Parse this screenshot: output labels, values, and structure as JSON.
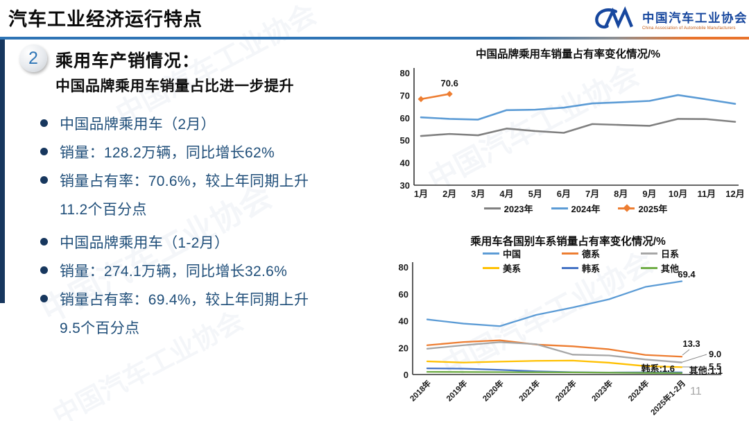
{
  "header": {
    "title": "汽车工业经济运行特点",
    "logo_cn": "中国汽车工业协会",
    "logo_en": "China Association of Automobile Manufacturers"
  },
  "watermark_text": "中国汽车工业协会",
  "section": {
    "number": "2",
    "heading": "乘用车产销情况：",
    "subheading": "中国品牌乘用车销量占比进一步提升"
  },
  "bullets": [
    {
      "text": "中国品牌乘用车（2月）",
      "dot": true
    },
    {
      "text": "销量：128.2万辆，同比增长62%",
      "dot": true
    },
    {
      "text": "销量占有率：70.6%，较上年同期上升",
      "dot": true
    },
    {
      "text": "11.2个百分点",
      "dot": false
    },
    {
      "text": "中国品牌乘用车（1-2月）",
      "dot": true,
      "gap": true
    },
    {
      "text": "销量：274.1万辆，同比增长32.6%",
      "dot": true
    },
    {
      "text": "销量占有率：69.4%，较上年同期上升",
      "dot": true
    },
    {
      "text": "9.5个百分点",
      "dot": false
    }
  ],
  "page_number": "11",
  "colors": {
    "accent_blue": "#2E74B5",
    "navy_text": "#1F4E79",
    "left_bar": "#17375E",
    "logo_blue": "#17479E",
    "logo_orange": "#C45911"
  },
  "chart_data": [
    {
      "type": "line",
      "title": "中国品牌乘用车销量占有率变化情况/%",
      "categories": [
        "1月",
        "2月",
        "3月",
        "4月",
        "5月",
        "6月",
        "7月",
        "8月",
        "9月",
        "10月",
        "11月",
        "12月"
      ],
      "ylim": [
        30,
        80
      ],
      "yticks": [
        30,
        40,
        50,
        60,
        70,
        80
      ],
      "grid": false,
      "legend_position": "bottom",
      "series": [
        {
          "name": "2023年",
          "color": "#808080",
          "values": [
            51.9,
            52.8,
            52.2,
            55.2,
            54.1,
            53.3,
            57.2,
            56.8,
            56.4,
            59.5,
            59.4,
            58.2
          ]
        },
        {
          "name": "2024年",
          "color": "#5B9BD5",
          "values": [
            60.2,
            59.5,
            59.2,
            63.4,
            63.6,
            64.5,
            66.4,
            66.9,
            67.5,
            70.1,
            68.2,
            66.2
          ]
        },
        {
          "name": "2025年",
          "color": "#ED7D31",
          "marker": "diamond",
          "values": [
            68.3,
            70.6
          ],
          "point_label": {
            "index": 1,
            "text": "70.6"
          }
        }
      ]
    },
    {
      "type": "line",
      "title": "乘用车各国别车系销量占有率变化情况/%",
      "categories": [
        "2018年",
        "2019年",
        "2020年",
        "2021年",
        "2022年",
        "2023年",
        "2024年",
        "2025年1-2月"
      ],
      "ylim": [
        0,
        80
      ],
      "yticks": [
        0,
        20,
        40,
        60,
        80
      ],
      "grid": false,
      "legend_position": "top",
      "series": [
        {
          "name": "中国",
          "color": "#5B9BD5",
          "values": [
            41.0,
            37.9,
            36.0,
            44.4,
            49.9,
            56.0,
            65.2,
            69.4
          ],
          "end_label": "69.4"
        },
        {
          "name": "德系",
          "color": "#ED7D31",
          "values": [
            21.8,
            24.2,
            25.5,
            22.3,
            21.0,
            18.8,
            14.6,
            13.3
          ],
          "end_label": "13.3"
        },
        {
          "name": "日系",
          "color": "#A6A6A6",
          "values": [
            19.2,
            21.8,
            24.1,
            22.6,
            14.8,
            14.2,
            11.2,
            9.0
          ],
          "end_label": "9.0"
        },
        {
          "name": "美系",
          "color": "#FFC000",
          "values": [
            9.8,
            8.9,
            9.6,
            10.2,
            10.4,
            8.8,
            6.3,
            5.5
          ],
          "end_label": "5.5"
        },
        {
          "name": "韩系",
          "color": "#4472C4",
          "values": [
            4.6,
            4.4,
            3.5,
            2.4,
            1.7,
            1.5,
            1.6,
            1.6
          ],
          "end_label": "韩系:1.6"
        },
        {
          "name": "其他",
          "color": "#70AD47",
          "values": [
            2.0,
            1.9,
            1.8,
            1.7,
            1.6,
            1.4,
            1.2,
            1.1
          ],
          "end_label": "其他:1.1"
        }
      ]
    }
  ]
}
